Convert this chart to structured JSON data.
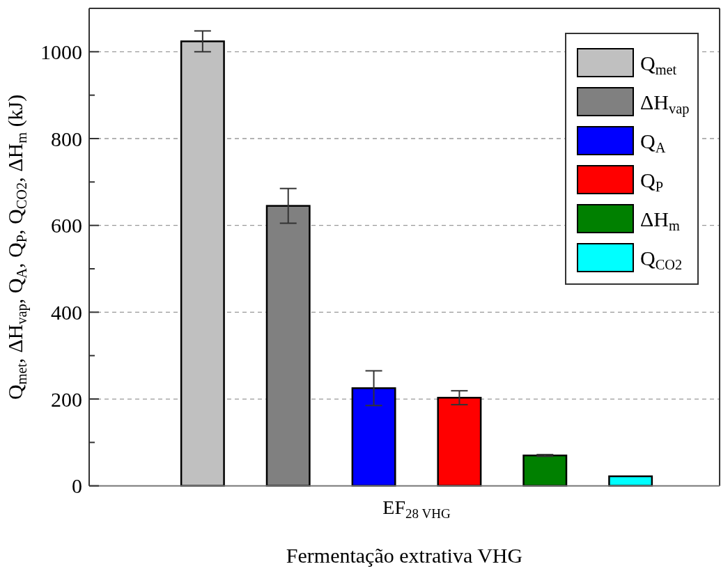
{
  "chart_data": {
    "type": "bar",
    "xlabel": "Fermentação extrativa VHG",
    "ylabel": "Q$_{met}$, ΔH$_{vap}$, Q$_{A}$, Q$_{P}$, Q$_{CO2}$, ΔH$_{m}$ (kJ)",
    "categories": [
      "EF$_{28 VHG}$"
    ],
    "series": [
      {
        "name": "Q$_{met}$",
        "color": "#c0c0c0",
        "values": [
          1024
        ],
        "errors": [
          24
        ]
      },
      {
        "name": "ΔH$_{vap}$",
        "color": "#808080",
        "values": [
          645
        ],
        "errors": [
          40
        ]
      },
      {
        "name": "Q$_{A}$",
        "color": "#0000ff",
        "values": [
          225
        ],
        "errors": [
          40
        ]
      },
      {
        "name": "Q$_{P}$",
        "color": "#ff0000",
        "values": [
          203
        ],
        "errors": [
          16
        ]
      },
      {
        "name": "ΔH$_{m}$",
        "color": "#008000",
        "values": [
          70
        ],
        "errors": [
          2
        ]
      },
      {
        "name": "Q$_{CO2}$",
        "color": "#00ffff",
        "values": [
          22
        ]
      }
    ],
    "ylim": [
      0,
      1100
    ],
    "yticks": [
      0,
      {
        "value": 100,
        "label": null
      },
      200,
      {
        "value": 300,
        "label": null
      },
      400,
      {
        "value": 500,
        "label": null
      },
      600,
      {
        "value": 700,
        "label": null
      },
      800,
      {
        "value": 900,
        "label": null
      },
      1000
    ],
    "grid": "y",
    "legend": "top right"
  }
}
